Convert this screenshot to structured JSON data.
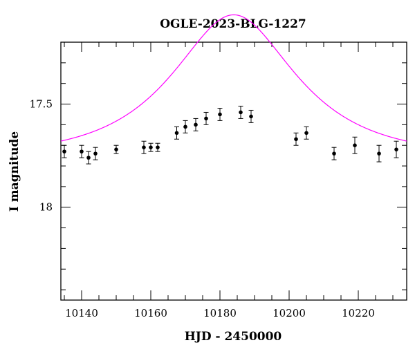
{
  "chart_data": {
    "type": "scatter",
    "title": "OGLE-2023-BLG-1227",
    "xlabel": "HJD - 2450000",
    "ylabel": "I magnitude",
    "xlim": [
      10134,
      10234
    ],
    "ylim": [
      18.45,
      17.2
    ],
    "y_inverted": true,
    "grid": false,
    "x_major_ticks": [
      10140,
      10160,
      10180,
      10200,
      10220
    ],
    "x_tick_labels": [
      "10140",
      "10160",
      "10180",
      "10200",
      "10220"
    ],
    "x_minor_step": 5,
    "y_major_ticks": [
      17.5,
      18
    ],
    "y_tick_labels": [
      "17.5",
      "18"
    ],
    "y_minor_step": 0.1,
    "series": [
      {
        "type": "scatter",
        "color": "#000000",
        "error_bars": true,
        "points": [
          {
            "x": 10135.0,
            "y": 17.73,
            "err": 0.03
          },
          {
            "x": 10140.0,
            "y": 17.73,
            "err": 0.03
          },
          {
            "x": 10142.0,
            "y": 17.76,
            "err": 0.03
          },
          {
            "x": 10144.0,
            "y": 17.74,
            "err": 0.03
          },
          {
            "x": 10150.0,
            "y": 17.72,
            "err": 0.02
          },
          {
            "x": 10158.0,
            "y": 17.71,
            "err": 0.03
          },
          {
            "x": 10160.0,
            "y": 17.71,
            "err": 0.02
          },
          {
            "x": 10162.0,
            "y": 17.71,
            "err": 0.02
          },
          {
            "x": 10167.5,
            "y": 17.64,
            "err": 0.03
          },
          {
            "x": 10170.0,
            "y": 17.61,
            "err": 0.03
          },
          {
            "x": 10173.0,
            "y": 17.6,
            "err": 0.03
          },
          {
            "x": 10176.0,
            "y": 17.57,
            "err": 0.03
          },
          {
            "x": 10180.0,
            "y": 17.55,
            "err": 0.03
          },
          {
            "x": 10186.0,
            "y": 17.54,
            "err": 0.03
          },
          {
            "x": 10189.0,
            "y": 17.56,
            "err": 0.03
          },
          {
            "x": 10202.0,
            "y": 17.67,
            "err": 0.03
          },
          {
            "x": 10205.0,
            "y": 17.64,
            "err": 0.03
          },
          {
            "x": 10213.0,
            "y": 17.74,
            "err": 0.03
          },
          {
            "x": 10219.0,
            "y": 17.7,
            "err": 0.04
          },
          {
            "x": 10226.0,
            "y": 17.74,
            "err": 0.04
          },
          {
            "x": 10231.0,
            "y": 17.72,
            "err": 0.04
          }
        ]
      },
      {
        "type": "line",
        "color": "#ff00ff",
        "model": {
          "kind": "pspl",
          "t0": 10184,
          "u0": 0.6,
          "tE": 28,
          "m_base": 17.755
        }
      }
    ]
  }
}
